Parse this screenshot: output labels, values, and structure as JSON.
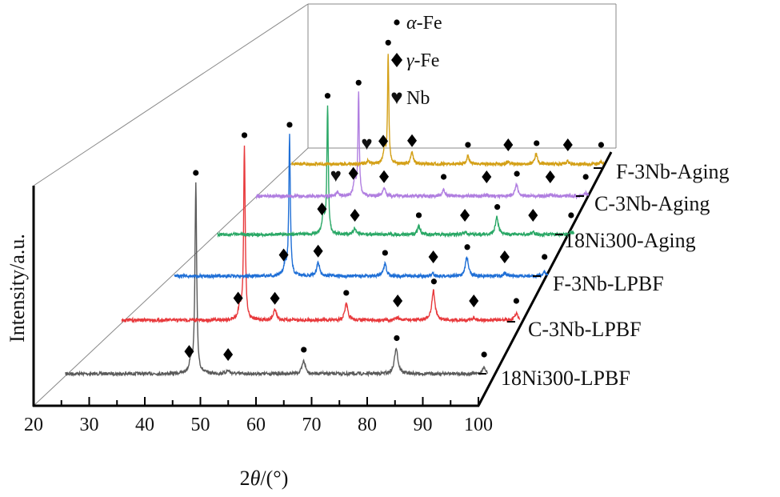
{
  "chart_data": {
    "type": "line",
    "subtype": "waterfall-3d",
    "xlabel_prefix": "2",
    "xlabel_symbol": "θ",
    "xlabel_suffix": "/(°)",
    "ylabel": "Intensity/a.u.",
    "xlim": [
      20,
      100
    ],
    "x_ticks": [
      "20",
      "30",
      "40",
      "50",
      "60",
      "70",
      "80",
      "90",
      "100"
    ],
    "series_x_range": [
      25.8,
      101.7
    ],
    "legend": [
      {
        "marker": "dot",
        "symbol": "α",
        "text": "-Fe"
      },
      {
        "marker": "diamond",
        "symbol": "γ",
        "text": "-Fe"
      },
      {
        "marker": "heart",
        "symbol": "",
        "text": "Nb"
      }
    ],
    "series": [
      {
        "name": "18Ni300-LPBF",
        "color": "#5a5a5a",
        "peaks": [
          [
            48.3,
            15
          ],
          [
            49.2,
            237
          ],
          [
            55,
            4
          ],
          [
            68.6,
            16
          ],
          [
            85.2,
            33
          ],
          [
            101,
            8
          ]
        ],
        "markers": [
          [
            "diamond",
            48.0
          ],
          [
            "diamond",
            55.0
          ],
          [
            "dot",
            68.6
          ],
          [
            "dot",
            85.3
          ],
          [
            "dot",
            101.0
          ],
          [
            "dot",
            49.2
          ]
        ]
      },
      {
        "name": "C-3Nb-LPBF",
        "color": "#e8393c",
        "peaks": [
          [
            48.3,
            15
          ],
          [
            49.2,
            217
          ],
          [
            55,
            13
          ],
          [
            68.6,
            20
          ],
          [
            78.4,
            3
          ],
          [
            85.2,
            37
          ],
          [
            92.9,
            3
          ],
          [
            101,
            8
          ]
        ],
        "markers": [
          [
            "diamond",
            48.0
          ],
          [
            "diamond",
            55.0
          ],
          [
            "dot",
            68.6
          ],
          [
            "diamond",
            78.4
          ],
          [
            "dot",
            85.3
          ],
          [
            "diamond",
            92.9
          ],
          [
            "dot",
            101.0
          ],
          [
            "dot",
            49.2
          ]
        ]
      },
      {
        "name": "F-3Nb-LPBF",
        "color": "#1f6fd6",
        "peaks": [
          [
            48.3,
            15
          ],
          [
            49.2,
            175
          ],
          [
            55,
            17
          ],
          [
            68.6,
            15
          ],
          [
            78.4,
            3
          ],
          [
            85.2,
            24
          ],
          [
            92.9,
            4
          ],
          [
            101,
            5
          ]
        ],
        "markers": [
          [
            "diamond",
            48.0
          ],
          [
            "diamond",
            55.0
          ],
          [
            "dot",
            68.6
          ],
          [
            "diamond",
            78.4
          ],
          [
            "dot",
            85.3
          ],
          [
            "diamond",
            92.9
          ],
          [
            "dot",
            101.0
          ],
          [
            "dot",
            49.2
          ]
        ]
      },
      {
        "name": "18Ni300-Aging",
        "color": "#2aa866",
        "peaks": [
          [
            48.3,
            25
          ],
          [
            49.2,
            158
          ],
          [
            55,
            8
          ],
          [
            68.6,
            10
          ],
          [
            78.4,
            3
          ],
          [
            85.2,
            22
          ],
          [
            92.9,
            3
          ],
          [
            101,
            3
          ]
        ],
        "markers": [
          [
            "diamond",
            48.0
          ],
          [
            "diamond",
            55.0
          ],
          [
            "dot",
            68.6
          ],
          [
            "diamond",
            78.4
          ],
          [
            "dot",
            85.3
          ],
          [
            "diamond",
            92.9
          ],
          [
            "dot",
            101.0
          ],
          [
            "dot",
            49.2
          ]
        ]
      },
      {
        "name": "C-3Nb-Aging",
        "color": "#b07ee0",
        "peaks": [
          [
            44.3,
            5
          ],
          [
            48.3,
            20
          ],
          [
            49.2,
            127
          ],
          [
            55,
            10
          ],
          [
            68.6,
            8
          ],
          [
            78.4,
            2
          ],
          [
            85.2,
            15
          ],
          [
            92.9,
            2
          ],
          [
            101,
            4
          ]
        ],
        "markers": [
          [
            "heart",
            44.0
          ],
          [
            "diamond",
            48.0
          ],
          [
            "diamond",
            55.0
          ],
          [
            "dot",
            68.6
          ],
          [
            "diamond",
            78.4
          ],
          [
            "dot",
            85.3
          ],
          [
            "diamond",
            92.9
          ],
          [
            "dot",
            101.0
          ],
          [
            "dot",
            49.2
          ]
        ]
      },
      {
        "name": "F-3Nb-Aging",
        "color": "#d4a017",
        "peaks": [
          [
            44.3,
            4
          ],
          [
            48.3,
            20
          ],
          [
            49.2,
            137
          ],
          [
            55,
            15
          ],
          [
            68.6,
            10
          ],
          [
            78.4,
            3
          ],
          [
            85.2,
            13
          ],
          [
            92.9,
            4
          ],
          [
            101,
            3
          ]
        ],
        "markers": [
          [
            "heart",
            44.0
          ],
          [
            "diamond",
            48.0
          ],
          [
            "diamond",
            55.0
          ],
          [
            "dot",
            68.6
          ],
          [
            "diamond",
            78.4
          ],
          [
            "dot",
            85.3
          ],
          [
            "diamond",
            92.9
          ],
          [
            "dot",
            101.0
          ],
          [
            "dot",
            49.2
          ]
        ]
      }
    ]
  }
}
